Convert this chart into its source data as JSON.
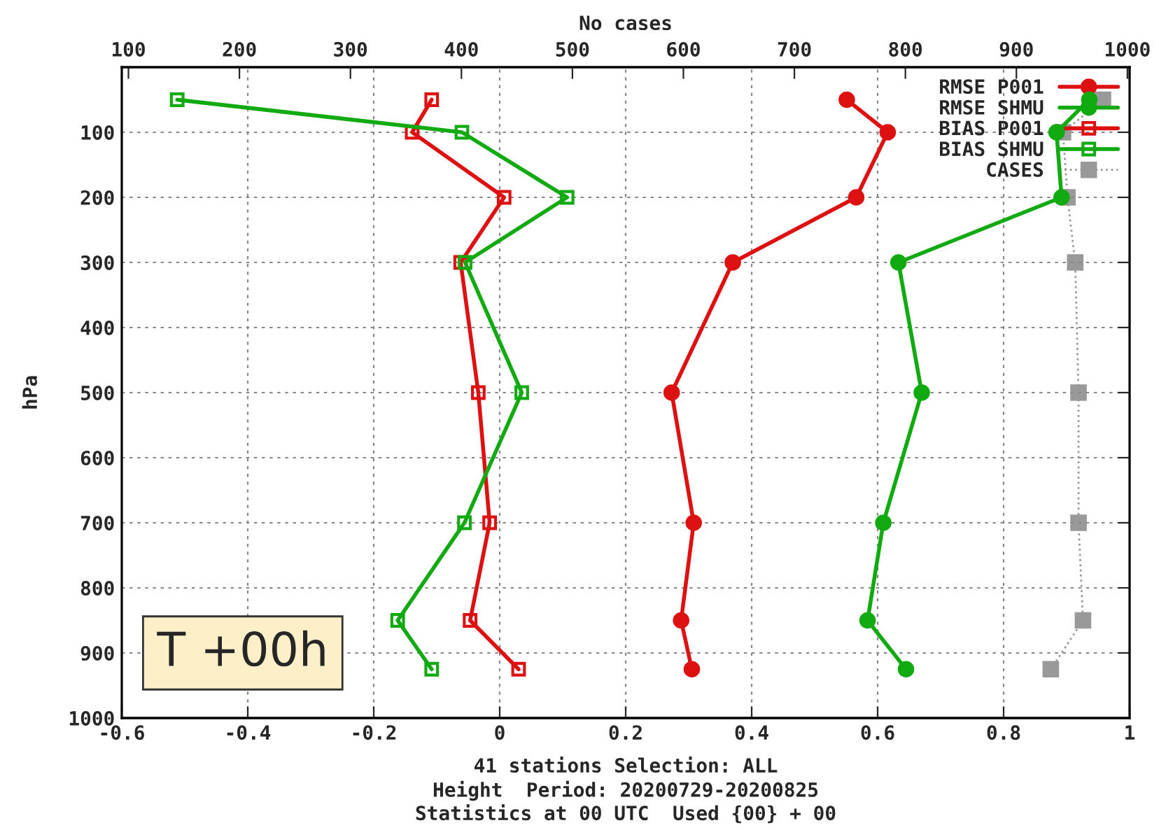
{
  "chart_data": {
    "type": "line",
    "orientation": "horizontal",
    "x2label": "No cases",
    "ylabel": "hPa",
    "x": [
      50,
      100,
      200,
      300,
      500,
      700,
      850,
      925
    ],
    "xlim": [
      -0.6,
      1
    ],
    "xticks": [
      {
        "value": -0.6,
        "label": "-0.6"
      },
      {
        "value": -0.4,
        "label": "-0.4"
      },
      {
        "value": -0.2,
        "label": "-0.2"
      },
      0,
      0.2,
      0.4,
      0.6,
      0.8,
      1
    ],
    "x2lim": [
      94,
      1002
    ],
    "x2ticks": [
      100,
      200,
      300,
      400,
      500,
      600,
      700,
      800,
      900,
      1000
    ],
    "ylim": [
      1000,
      0
    ],
    "yticks": [
      100,
      200,
      300,
      400,
      500,
      600,
      700,
      800,
      900,
      1000
    ],
    "grid": true,
    "legend": "top right",
    "series": [
      {
        "name": "RMSE P001",
        "color": "#dd1111",
        "marker": "circle",
        "line_style": "solid",
        "values": [
          0.551,
          0.616,
          0.566,
          0.37,
          0.273,
          0.308,
          0.288,
          0.305
        ]
      },
      {
        "name": "RMSE SHMU",
        "color": "#11aa11",
        "marker": "circle",
        "line_style": "solid",
        "values": [
          0.936,
          0.884,
          0.892,
          0.633,
          0.67,
          0.609,
          0.584,
          0.645
        ]
      },
      {
        "name": "BIAS P001",
        "color": "#dd1111",
        "marker": "square",
        "line_style": "solid",
        "values": [
          -0.108,
          -0.139,
          0.007,
          -0.062,
          -0.034,
          -0.016,
          -0.047,
          0.03
        ]
      },
      {
        "name": "BIAS SHMU",
        "color": "#11aa11",
        "marker": "square",
        "line_style": "solid",
        "values": [
          -0.512,
          -0.06,
          0.107,
          -0.055,
          0.035,
          -0.056,
          -0.162,
          -0.108
        ]
      },
      {
        "name": "CASES",
        "color": "#999999",
        "marker": "square",
        "line_style": "dotted",
        "axis": "x2",
        "values": [
          978,
          942,
          946,
          953,
          956,
          956,
          960,
          931
        ]
      }
    ],
    "annotations": [
      "T +00h",
      "41 stations Selection: ALL",
      "Height  Period: 20200729-20200825",
      "Statistics at 00 UTC  Used {00} + 00"
    ]
  }
}
